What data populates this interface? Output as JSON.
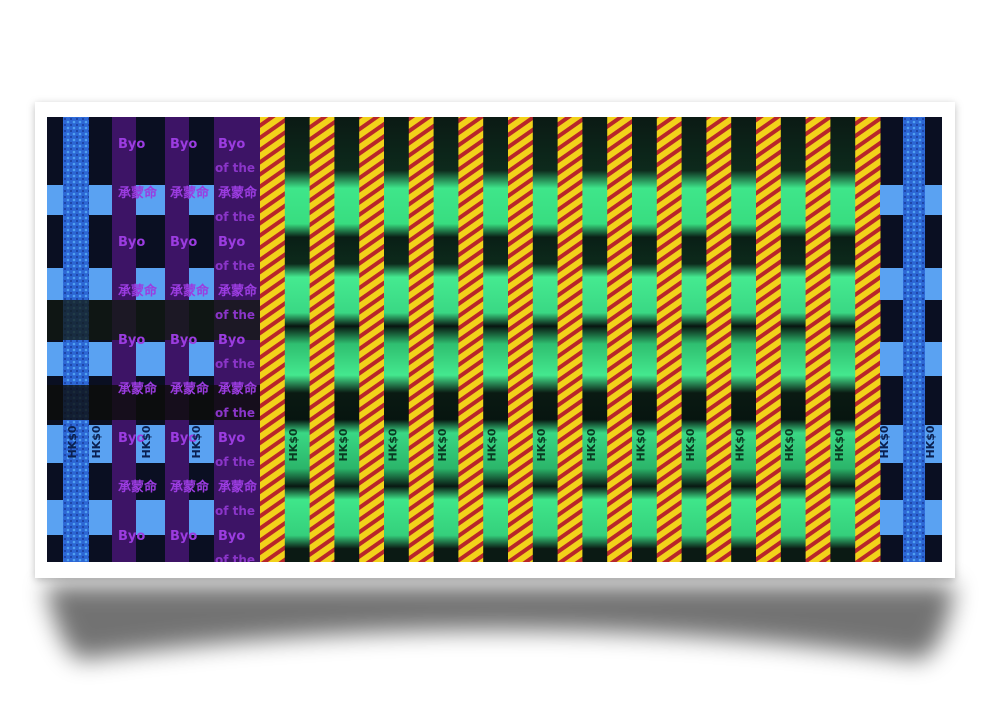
{
  "image": {
    "texts": {
      "value_mark": "HK$0",
      "english": "Byo",
      "english_2": "of the",
      "chinese": "承蒙命"
    }
  }
}
